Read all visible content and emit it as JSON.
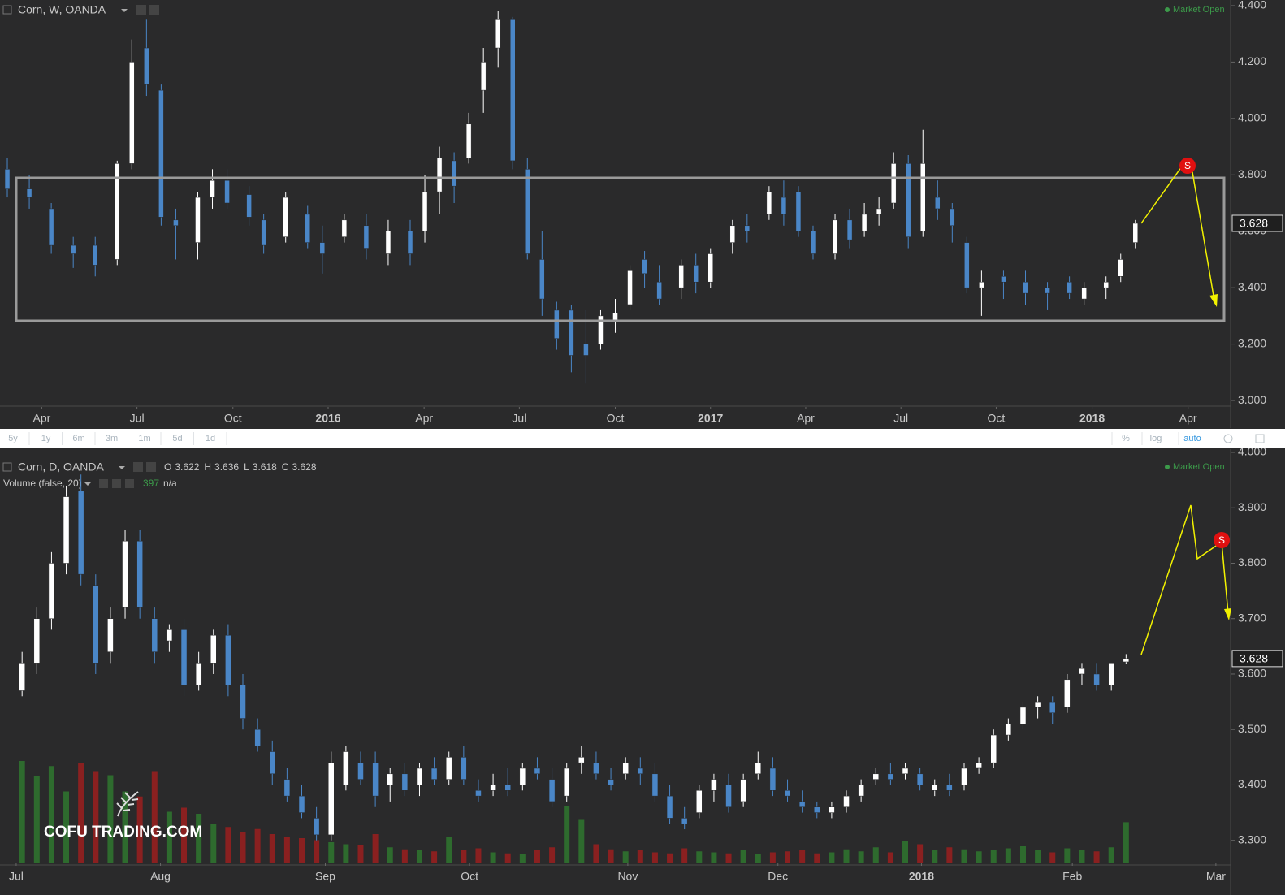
{
  "chart_data": [
    {
      "type": "candlestick",
      "title": "Corn, W, OANDA",
      "status": "Market Open",
      "signal": "S",
      "up_color": "#ffffff",
      "down_color": "#4a86c7",
      "x": [
        1,
        4,
        7,
        10,
        13,
        16,
        18,
        20,
        22,
        24,
        27,
        29,
        31,
        34,
        36,
        39,
        42,
        44,
        47,
        50,
        53,
        56,
        58,
        60,
        62,
        64,
        66,
        68,
        70,
        72,
        74,
        76,
        78,
        80,
        82,
        84,
        86,
        88,
        90,
        93,
        95,
        97,
        100,
        102,
        105,
        107,
        109,
        111,
        114,
        116,
        118,
        120,
        122,
        124,
        126,
        128,
        130,
        132,
        134,
        137,
        140,
        143,
        146,
        148,
        151,
        153,
        155
      ],
      "open": [
        3.82,
        3.75,
        3.68,
        3.55,
        3.55,
        3.5,
        3.84,
        4.25,
        4.1,
        3.64,
        3.56,
        3.72,
        3.78,
        3.73,
        3.64,
        3.58,
        3.66,
        3.56,
        3.58,
        3.62,
        3.52,
        3.6,
        3.6,
        3.74,
        3.85,
        3.86,
        4.1,
        4.25,
        4.35,
        3.82,
        3.5,
        3.32,
        3.32,
        3.2,
        3.2,
        3.28,
        3.34,
        3.5,
        3.42,
        3.4,
        3.48,
        3.42,
        3.56,
        3.62,
        3.66,
        3.72,
        3.74,
        3.6,
        3.52,
        3.64,
        3.6,
        3.66,
        3.7,
        3.84,
        3.6,
        3.72,
        3.68,
        3.56,
        3.4,
        3.44,
        3.42,
        3.4,
        3.42,
        3.36,
        3.4,
        3.44,
        3.56
      ],
      "high": [
        3.86,
        3.8,
        3.7,
        3.58,
        3.58,
        3.85,
        4.28,
        4.35,
        4.12,
        3.68,
        3.74,
        3.82,
        3.82,
        3.76,
        3.66,
        3.74,
        3.69,
        3.62,
        3.66,
        3.66,
        3.64,
        3.64,
        3.8,
        3.9,
        3.88,
        4.02,
        4.25,
        4.38,
        4.36,
        3.86,
        3.6,
        3.35,
        3.34,
        3.32,
        3.32,
        3.36,
        3.48,
        3.53,
        3.48,
        3.5,
        3.52,
        3.54,
        3.64,
        3.66,
        3.76,
        3.78,
        3.76,
        3.62,
        3.66,
        3.68,
        3.7,
        3.72,
        3.88,
        3.87,
        3.96,
        3.78,
        3.7,
        3.58,
        3.46,
        3.46,
        3.46,
        3.42,
        3.44,
        3.42,
        3.44,
        3.52,
        3.64
      ],
      "low": [
        3.72,
        3.68,
        3.52,
        3.47,
        3.44,
        3.48,
        3.82,
        4.08,
        3.62,
        3.5,
        3.5,
        3.68,
        3.68,
        3.62,
        3.52,
        3.56,
        3.54,
        3.45,
        3.56,
        3.5,
        3.48,
        3.48,
        3.56,
        3.66,
        3.7,
        3.84,
        4.02,
        4.18,
        3.82,
        3.5,
        3.3,
        3.18,
        3.1,
        3.06,
        3.18,
        3.24,
        3.32,
        3.4,
        3.34,
        3.36,
        3.38,
        3.4,
        3.52,
        3.56,
        3.64,
        3.62,
        3.58,
        3.5,
        3.5,
        3.54,
        3.58,
        3.62,
        3.68,
        3.54,
        3.58,
        3.64,
        3.56,
        3.38,
        3.3,
        3.36,
        3.34,
        3.32,
        3.36,
        3.34,
        3.36,
        3.42,
        3.54
      ],
      "close": [
        3.75,
        3.72,
        3.55,
        3.52,
        3.48,
        3.84,
        4.2,
        4.12,
        3.65,
        3.62,
        3.72,
        3.78,
        3.7,
        3.65,
        3.55,
        3.72,
        3.56,
        3.52,
        3.64,
        3.54,
        3.6,
        3.52,
        3.74,
        3.86,
        3.76,
        3.98,
        4.2,
        4.35,
        3.85,
        3.52,
        3.36,
        3.22,
        3.16,
        3.16,
        3.3,
        3.31,
        3.46,
        3.45,
        3.36,
        3.48,
        3.42,
        3.52,
        3.62,
        3.6,
        3.74,
        3.66,
        3.6,
        3.52,
        3.64,
        3.57,
        3.66,
        3.68,
        3.84,
        3.58,
        3.84,
        3.68,
        3.62,
        3.4,
        3.42,
        3.42,
        3.38,
        3.38,
        3.38,
        3.4,
        3.42,
        3.5,
        3.628
      ],
      "xlim": [
        0,
        168
      ],
      "xticks": [
        {
          "value": 5.7,
          "label": "Apr"
        },
        {
          "value": 18.7,
          "label": "Jul"
        },
        {
          "value": 31.8,
          "label": "Oct"
        },
        {
          "value": 44.8,
          "label": "2016"
        },
        {
          "value": 57.9,
          "label": "Apr"
        },
        {
          "value": 70.9,
          "label": "Jul"
        },
        {
          "value": 84,
          "label": "Oct"
        },
        {
          "value": 97,
          "label": "2017"
        },
        {
          "value": 110,
          "label": "Apr"
        },
        {
          "value": 123,
          "label": "Jul"
        },
        {
          "value": 136,
          "label": "Oct"
        },
        {
          "value": 149.1,
          "label": "2018"
        },
        {
          "value": 162.2,
          "label": "Apr"
        }
      ],
      "ylim": [
        2.98,
        4.42
      ],
      "yticks": [
        {
          "value": 3,
          "label": "3.000"
        },
        {
          "value": 3.2,
          "label": "3.200"
        },
        {
          "value": 3.4,
          "label": "3.400"
        },
        {
          "value": 3.6,
          "label": "3.600"
        },
        {
          "value": 3.8,
          "label": "3.800"
        },
        {
          "value": 4,
          "label": "4.000"
        },
        {
          "value": 4.2,
          "label": "4.200"
        },
        {
          "value": 4.4,
          "label": "4.400"
        }
      ]
    },
    {
      "type": "candlestick",
      "title": "Corn, D, OANDA",
      "status": "Market Open",
      "signal": "S",
      "ohlc_labels": [
        "O",
        "H",
        "L",
        "C"
      ],
      "up_color": "#ffffff",
      "down_color": "#4a86c7",
      "x": [
        0,
        2,
        4,
        6,
        8,
        10,
        12,
        14,
        16,
        18,
        20,
        22,
        24,
        26,
        28,
        30,
        32,
        34,
        36,
        38,
        40,
        42,
        44,
        46,
        48,
        50,
        52,
        54,
        56,
        58,
        60,
        62,
        64,
        66,
        68,
        70,
        72,
        74,
        76,
        78,
        80,
        82,
        84,
        86,
        88,
        90,
        92,
        94,
        96,
        98,
        100,
        102,
        104,
        106,
        108,
        110,
        112,
        114,
        116,
        118,
        120,
        122,
        124,
        126,
        128,
        130,
        132,
        134,
        136,
        138,
        140,
        142,
        144,
        146,
        148,
        150
      ],
      "open": [
        3.57,
        3.62,
        3.7,
        3.8,
        3.93,
        3.76,
        3.64,
        3.72,
        3.84,
        3.7,
        3.66,
        3.68,
        3.58,
        3.62,
        3.67,
        3.58,
        3.5,
        3.46,
        3.41,
        3.38,
        3.34,
        3.31,
        3.4,
        3.44,
        3.44,
        3.4,
        3.42,
        3.4,
        3.43,
        3.41,
        3.45,
        3.39,
        3.39,
        3.4,
        3.4,
        3.43,
        3.41,
        3.38,
        3.44,
        3.44,
        3.41,
        3.42,
        3.43,
        3.42,
        3.38,
        3.34,
        3.35,
        3.39,
        3.4,
        3.37,
        3.42,
        3.43,
        3.39,
        3.37,
        3.36,
        3.35,
        3.36,
        3.38,
        3.41,
        3.42,
        3.42,
        3.42,
        3.39,
        3.4,
        3.4,
        3.43,
        3.44,
        3.49,
        3.51,
        3.54,
        3.55,
        3.54,
        3.6,
        3.6,
        3.58,
        3.622
      ],
      "high": [
        3.64,
        3.72,
        3.82,
        3.94,
        3.96,
        3.78,
        3.72,
        3.86,
        3.86,
        3.72,
        3.69,
        3.7,
        3.64,
        3.68,
        3.69,
        3.6,
        3.52,
        3.48,
        3.43,
        3.4,
        3.36,
        3.46,
        3.47,
        3.46,
        3.46,
        3.43,
        3.44,
        3.44,
        3.45,
        3.46,
        3.47,
        3.41,
        3.42,
        3.43,
        3.44,
        3.45,
        3.43,
        3.44,
        3.47,
        3.46,
        3.43,
        3.45,
        3.45,
        3.44,
        3.4,
        3.36,
        3.4,
        3.42,
        3.42,
        3.42,
        3.46,
        3.45,
        3.41,
        3.39,
        3.37,
        3.37,
        3.39,
        3.41,
        3.43,
        3.44,
        3.44,
        3.43,
        3.41,
        3.42,
        3.44,
        3.45,
        3.5,
        3.52,
        3.55,
        3.56,
        3.56,
        3.6,
        3.62,
        3.62,
        3.62,
        3.636
      ],
      "low": [
        3.56,
        3.6,
        3.68,
        3.78,
        3.76,
        3.6,
        3.62,
        3.7,
        3.7,
        3.62,
        3.64,
        3.56,
        3.57,
        3.6,
        3.56,
        3.5,
        3.46,
        3.4,
        3.37,
        3.34,
        3.3,
        3.3,
        3.39,
        3.4,
        3.36,
        3.37,
        3.38,
        3.38,
        3.4,
        3.4,
        3.4,
        3.37,
        3.38,
        3.38,
        3.39,
        3.41,
        3.36,
        3.37,
        3.42,
        3.41,
        3.39,
        3.41,
        3.4,
        3.37,
        3.33,
        3.32,
        3.34,
        3.37,
        3.35,
        3.36,
        3.41,
        3.38,
        3.37,
        3.35,
        3.34,
        3.34,
        3.35,
        3.37,
        3.4,
        3.4,
        3.41,
        3.39,
        3.38,
        3.38,
        3.39,
        3.42,
        3.43,
        3.48,
        3.5,
        3.52,
        3.51,
        3.53,
        3.58,
        3.57,
        3.57,
        3.618
      ],
      "close": [
        3.62,
        3.7,
        3.8,
        3.92,
        3.78,
        3.62,
        3.7,
        3.84,
        3.72,
        3.64,
        3.68,
        3.58,
        3.62,
        3.67,
        3.58,
        3.52,
        3.47,
        3.42,
        3.38,
        3.35,
        3.31,
        3.44,
        3.46,
        3.41,
        3.38,
        3.42,
        3.39,
        3.43,
        3.41,
        3.45,
        3.41,
        3.38,
        3.4,
        3.39,
        3.43,
        3.42,
        3.37,
        3.43,
        3.45,
        3.42,
        3.4,
        3.44,
        3.42,
        3.38,
        3.34,
        3.33,
        3.39,
        3.41,
        3.36,
        3.41,
        3.44,
        3.39,
        3.38,
        3.36,
        3.35,
        3.36,
        3.38,
        3.4,
        3.42,
        3.41,
        3.43,
        3.4,
        3.4,
        3.39,
        3.43,
        3.44,
        3.49,
        3.51,
        3.54,
        3.55,
        3.53,
        3.59,
        3.61,
        3.58,
        3.62,
        3.628
      ],
      "indicator": {
        "name": "Volume (false, 20)",
        "extra": "n/a",
        "up_color": "#2e6b2e",
        "down_color": "#8a2020",
        "values": [
          1000,
          850,
          950,
          700,
          980,
          900,
          860,
          700,
          650,
          900,
          500,
          540,
          480,
          380,
          350,
          300,
          330,
          280,
          250,
          240,
          220,
          200,
          180,
          170,
          280,
          150,
          130,
          120,
          110,
          250,
          120,
          140,
          100,
          90,
          80,
          120,
          150,
          560,
          420,
          180,
          130,
          110,
          120,
          100,
          90,
          140,
          110,
          100,
          90,
          120,
          80,
          100,
          110,
          120,
          90,
          100,
          130,
          110,
          150,
          100,
          210,
          180,
          120,
          150,
          130,
          110,
          120,
          140,
          160,
          120,
          100,
          140,
          120,
          110,
          150,
          397
        ]
      },
      "xlim": [
        -3,
        164.2
      ],
      "xticks": [
        {
          "value": -0.8,
          "label": "Jul"
        },
        {
          "value": 18.8,
          "label": "Aug"
        },
        {
          "value": 41.2,
          "label": "Sep"
        },
        {
          "value": 60.8,
          "label": "Oct"
        },
        {
          "value": 82.3,
          "label": "Nov"
        },
        {
          "value": 102.7,
          "label": "Dec"
        },
        {
          "value": 122.2,
          "label": "2018"
        },
        {
          "value": 142.7,
          "label": "Feb"
        },
        {
          "value": 162.2,
          "label": "Mar"
        }
      ],
      "ylim": [
        3.26,
        4.0
      ],
      "yticks": [
        {
          "value": 3.3,
          "label": "3.300"
        },
        {
          "value": 3.4,
          "label": "3.400"
        },
        {
          "value": 3.5,
          "label": "3.500"
        },
        {
          "value": 3.6,
          "label": "3.600"
        },
        {
          "value": 3.7,
          "label": "3.700"
        },
        {
          "value": 3.8,
          "label": "3.800"
        },
        {
          "value": 3.9,
          "label": "3.900"
        },
        {
          "value": 4,
          "label": "4.000"
        }
      ]
    }
  ],
  "toolbar": {
    "ranges": [
      "5y",
      "1y",
      "6m",
      "3m",
      "1m",
      "5d",
      "1d"
    ],
    "options": [
      "%",
      "log",
      "auto"
    ]
  },
  "watermark": "COFU TRADING.COM"
}
